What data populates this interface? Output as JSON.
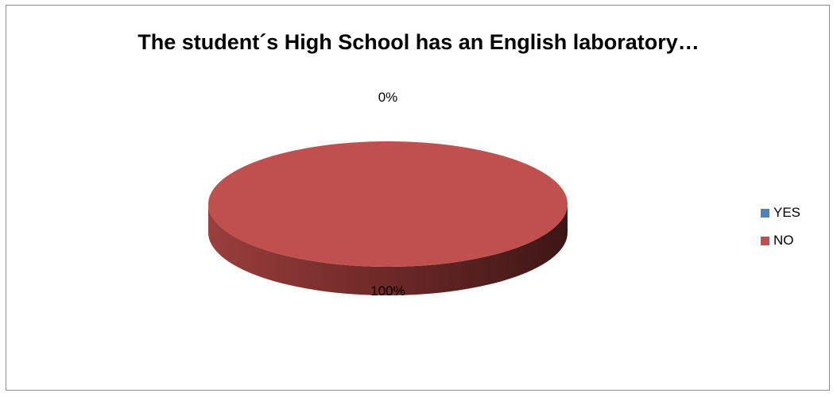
{
  "chart_data": {
    "type": "pie",
    "title": "The student´s High School has an English laboratory…",
    "categories": [
      "YES",
      "NO"
    ],
    "values": [
      0,
      100
    ],
    "data_labels": [
      "0%",
      "100%"
    ],
    "colors": [
      "#4f81bd",
      "#c0504d"
    ],
    "legend_position": "right",
    "style": "3d"
  }
}
